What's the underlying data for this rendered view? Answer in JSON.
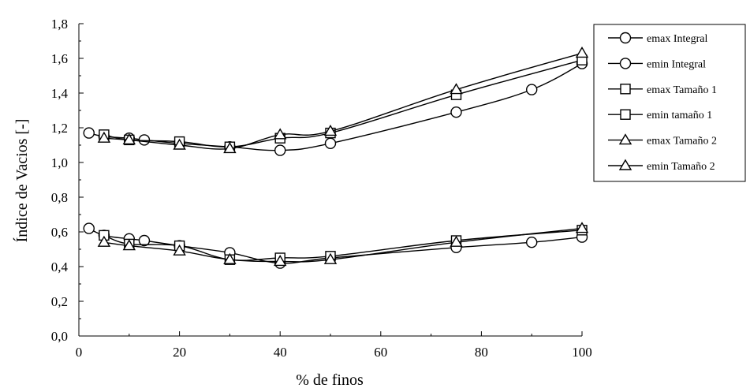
{
  "chart_data": {
    "type": "line",
    "title": "",
    "xlabel": "% de finos",
    "ylabel": "Índice de Vacios [-]",
    "xlim": [
      0,
      100
    ],
    "ylim": [
      0,
      1.8
    ],
    "x_ticks": [
      0,
      20,
      40,
      60,
      80,
      100
    ],
    "x_tick_labels": [
      "0",
      "20",
      "40",
      "60",
      "80",
      "100"
    ],
    "y_ticks": [
      0,
      0.2,
      0.4,
      0.6,
      0.8,
      1.0,
      1.2,
      1.4,
      1.6,
      1.8
    ],
    "y_tick_labels": [
      "0,0",
      "0,2",
      "0,4",
      "0,6",
      "0,8",
      "1,0",
      "1,2",
      "1,4",
      "1,6",
      "1,8"
    ],
    "grid": false,
    "legend_position": "right",
    "series": [
      {
        "name": "emax Integral",
        "marker": "circle",
        "x": [
          2,
          5,
          10,
          13,
          20,
          30,
          40,
          50,
          75,
          90,
          100
        ],
        "y": [
          1.17,
          1.15,
          1.14,
          1.13,
          1.11,
          1.09,
          1.07,
          1.11,
          1.29,
          1.42,
          1.57
        ]
      },
      {
        "name": "emin Integral",
        "marker": "circle",
        "x": [
          2,
          5,
          10,
          13,
          20,
          30,
          40,
          50,
          75,
          90,
          100
        ],
        "y": [
          0.62,
          0.58,
          0.56,
          0.55,
          0.52,
          0.48,
          0.42,
          0.45,
          0.51,
          0.54,
          0.57
        ]
      },
      {
        "name": "emax Tamaño 1",
        "marker": "square",
        "x": [
          5,
          10,
          20,
          30,
          40,
          50,
          75,
          100
        ],
        "y": [
          1.16,
          1.13,
          1.12,
          1.09,
          1.14,
          1.17,
          1.39,
          1.59
        ]
      },
      {
        "name": "emin tamaño 1",
        "marker": "square",
        "x": [
          5,
          10,
          20,
          30,
          40,
          50,
          75,
          100
        ],
        "y": [
          0.58,
          0.53,
          0.52,
          0.44,
          0.45,
          0.46,
          0.55,
          0.61
        ]
      },
      {
        "name": "emax Tamaño 2",
        "marker": "triangle",
        "x": [
          5,
          10,
          20,
          30,
          40,
          50,
          75,
          100
        ],
        "y": [
          1.14,
          1.13,
          1.1,
          1.08,
          1.16,
          1.18,
          1.42,
          1.63
        ]
      },
      {
        "name": "emin Tamaño 2",
        "marker": "triangle",
        "x": [
          5,
          10,
          20,
          30,
          40,
          50,
          75,
          100
        ],
        "y": [
          0.54,
          0.52,
          0.49,
          0.44,
          0.43,
          0.44,
          0.54,
          0.62
        ]
      }
    ]
  }
}
